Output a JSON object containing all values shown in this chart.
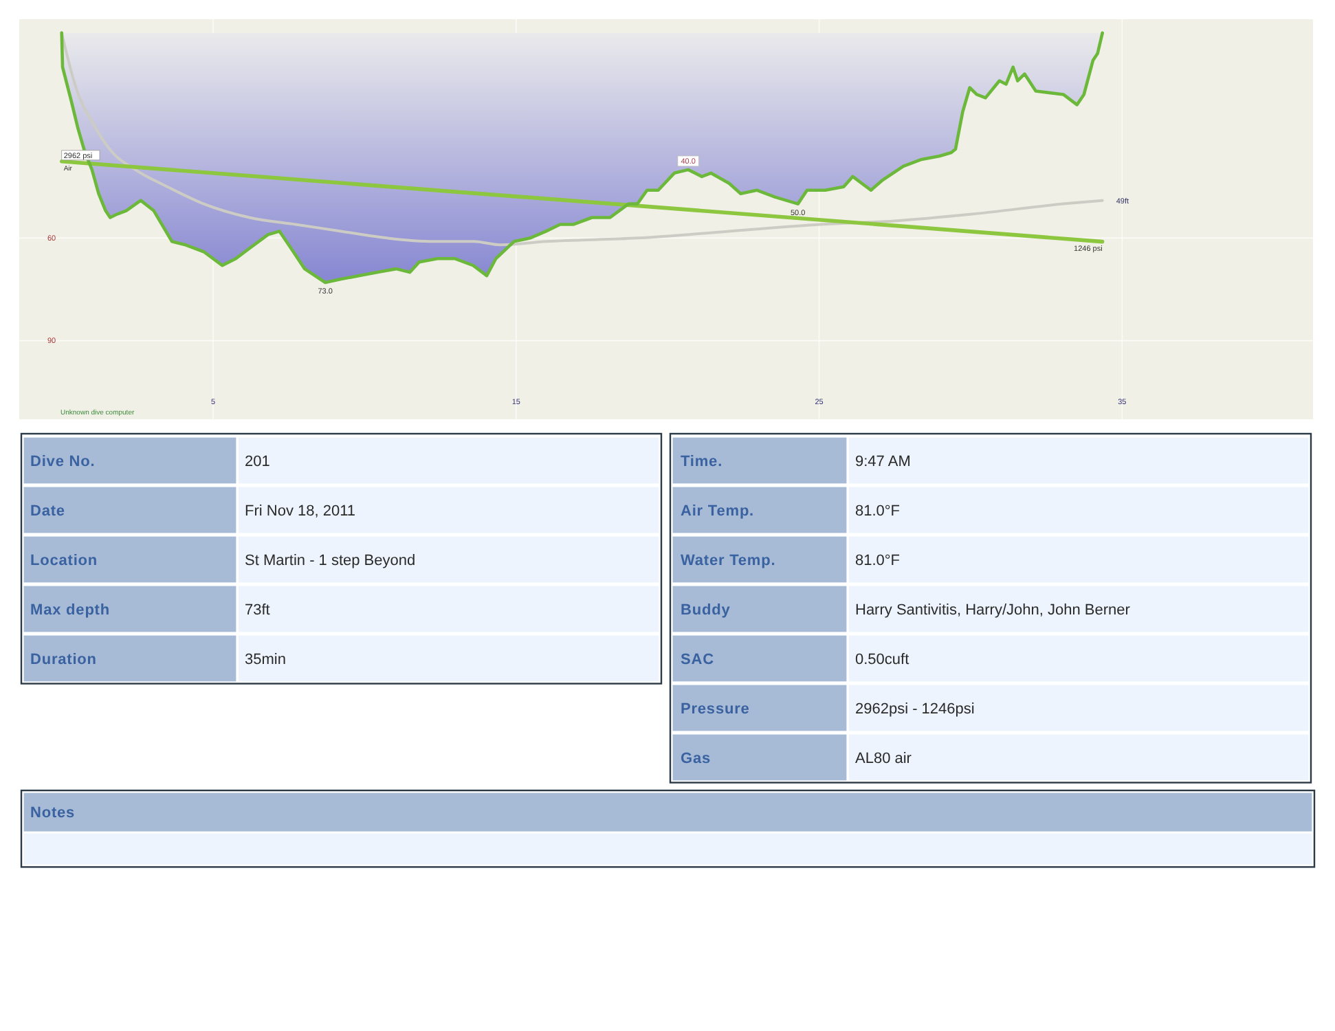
{
  "chart_data": [
    {
      "type": "line",
      "xlim": [
        -1.4,
        41.3
      ],
      "xticks": [
        5,
        15,
        25,
        35
      ],
      "ylim": [
        113,
        -4
      ],
      "yticks": [
        60,
        90
      ],
      "y2lim": [
        -2550,
        6000
      ],
      "grid": true,
      "annotations": [
        "Unknown dive computer"
      ],
      "series": [
        {
          "type": "area",
          "color": "#6cb83a",
          "x": [
            0,
            0.03,
            0.32,
            0.54,
            0.77,
            1.0,
            1.22,
            1.45,
            1.6,
            1.83,
            2.13,
            2.61,
            3.04,
            3.64,
            4.09,
            4.69,
            5.3,
            5.75,
            6.2,
            6.81,
            7.19,
            7.57,
            8.02,
            8.7,
            9.22,
            9.83,
            10.43,
            11.04,
            11.49,
            11.8,
            12.4,
            12.97,
            13.58,
            14.03,
            14.33,
            14.93,
            15.46,
            15.99,
            16.45,
            16.9,
            17.5,
            18.1,
            18.71,
            19.0,
            19.32,
            19.69,
            20.22,
            20.68,
            21.13,
            21.43,
            22.03,
            22.41,
            22.94,
            23.54,
            24.3,
            24.6,
            25.2,
            25.81,
            26.11,
            26.71,
            27.1,
            27.78,
            28.38,
            28.98,
            29.36,
            29.5,
            29.74,
            29.97,
            30.2,
            30.49,
            30.95,
            31.17,
            31.4,
            31.55,
            31.78,
            32.15,
            33.06,
            33.51,
            33.74,
            34.04,
            34.19,
            34.35
          ],
          "values": [
            0,
            10,
            20,
            28,
            35,
            40,
            47,
            52,
            54,
            53,
            52,
            49,
            52,
            61,
            62,
            64,
            68,
            66,
            63,
            59,
            58,
            63,
            69,
            73,
            72,
            71,
            70,
            69,
            70,
            67,
            66,
            66,
            68,
            71,
            66,
            61,
            60,
            58,
            56,
            56,
            54,
            54,
            50,
            50,
            46,
            46,
            41,
            40,
            42,
            41,
            44,
            47,
            46,
            48,
            50,
            46,
            46,
            45,
            42,
            46,
            43,
            39,
            37,
            36,
            35,
            34,
            23,
            16,
            18,
            19,
            14,
            15,
            10,
            14,
            12,
            17,
            18,
            21,
            18,
            8,
            6,
            0
          ],
          "value_labels": [
            null,
            null,
            null,
            null,
            null,
            null,
            null,
            null,
            null,
            null,
            null,
            null,
            null,
            null,
            null,
            null,
            null,
            null,
            null,
            null,
            null,
            null,
            null,
            "73.0",
            null,
            null,
            null,
            null,
            null,
            null,
            null,
            null,
            null,
            null,
            null,
            null,
            null,
            null,
            null,
            null,
            null,
            null,
            null,
            null,
            null,
            null,
            null,
            "40.0",
            null,
            null,
            null,
            null,
            null,
            null,
            "50.0",
            null,
            null,
            null,
            null,
            null,
            null,
            null,
            null,
            null,
            null,
            null,
            null,
            null,
            null,
            null,
            null,
            null,
            null,
            null,
            null,
            null,
            null,
            null,
            null,
            null,
            null,
            null
          ]
        },
        {
          "type": "line",
          "color": "#cdccc4",
          "x": [
            0,
            0.47,
            1.07,
            1.68,
            2.43,
            3.49,
            4.69,
            6.2,
            7.72,
            9.22,
            10.74,
            12.25,
            13.6,
            14.48,
            15.99,
            19.0,
            22.03,
            25.06,
            27.47,
            30.04,
            33.06,
            34.35
          ],
          "values": [
            0,
            16,
            27,
            35,
            40,
            45,
            50,
            54,
            56,
            58,
            60,
            61,
            61,
            62,
            61,
            60,
            58,
            56,
            55,
            53,
            50,
            49
          ],
          "value_labels": [
            null,
            null,
            null,
            null,
            null,
            null,
            null,
            null,
            null,
            null,
            null,
            null,
            null,
            null,
            null,
            null,
            null,
            null,
            null,
            null,
            null,
            "49ft"
          ]
        },
        {
          "type": "line",
          "name": "Air",
          "axis": "y2",
          "color": "#8dc63f",
          "x": [
            0,
            34.35
          ],
          "values": [
            2962,
            1246
          ],
          "value_labels": [
            "2962 psi",
            "1246 psi"
          ]
        }
      ]
    },
    {
      "type": "other",
      "y_categories": [
        "Dive No.",
        "Date",
        "Location",
        "Max depth",
        "Duration"
      ],
      "cell_labels": [
        [
          "201"
        ],
        [
          "Fri Nov 18, 2011"
        ],
        [
          "St Martin - 1 step Beyond"
        ],
        [
          "73ft"
        ],
        [
          "35min"
        ]
      ]
    },
    {
      "type": "other",
      "y_categories": [
        "Time.",
        "Air Temp.",
        "Water Temp.",
        "Buddy",
        "SAC",
        "Pressure",
        "Gas"
      ],
      "cell_labels": [
        [
          "9:47 AM"
        ],
        [
          "81.0°F"
        ],
        [
          "81.0°F"
        ],
        [
          "Harry Santivitis, Harry/John, John Berner"
        ],
        [
          "0.50cuft"
        ],
        [
          "2962psi - 1246psi"
        ],
        [
          "AL80 air"
        ]
      ]
    },
    {
      "type": "other",
      "title": "Notes"
    }
  ]
}
